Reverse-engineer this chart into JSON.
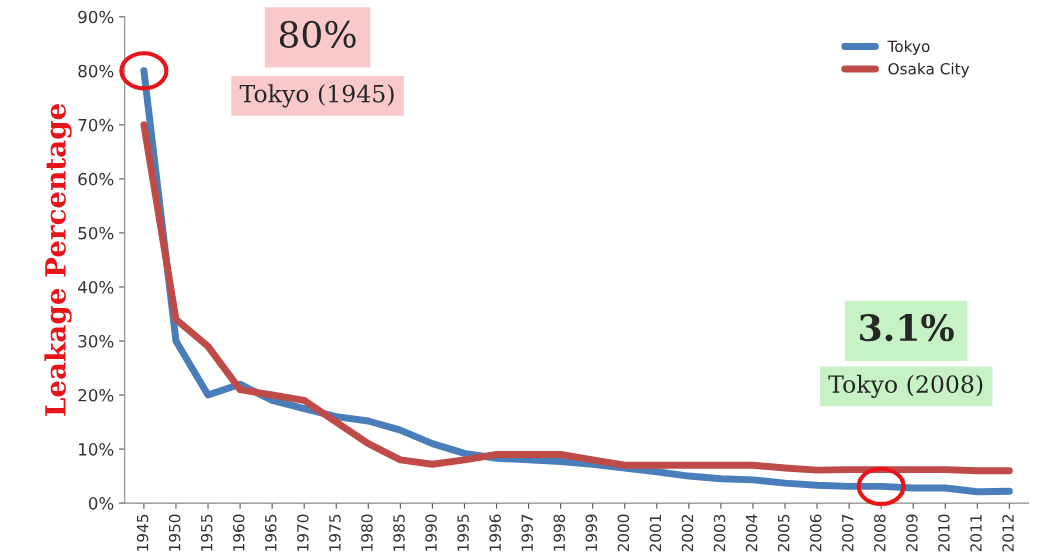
{
  "chart_data": {
    "type": "line",
    "ylabel": "Leakage Percentage",
    "categories": [
      "1945",
      "1950",
      "1955",
      "1960",
      "1965",
      "1970",
      "1975",
      "1980",
      "1985",
      "1990",
      "1995",
      "1996",
      "1997",
      "1998",
      "1999",
      "2000",
      "2001",
      "2002",
      "2003",
      "2004",
      "2005",
      "2006",
      "2007",
      "2008",
      "2009",
      "2010",
      "2011",
      "2012"
    ],
    "series": [
      {
        "name": "Tokyo",
        "color": "#4a7ebb",
        "values": [
          80,
          30,
          20,
          22,
          19,
          17.5,
          16,
          15.2,
          13.5,
          11,
          9.2,
          8.3,
          8,
          7.7,
          7.2,
          6.5,
          5.8,
          5,
          4.5,
          4.3,
          3.7,
          3.3,
          3.1,
          3.1,
          2.8,
          2.8,
          2.1,
          2.2
        ]
      },
      {
        "name": "Osaka City",
        "color": "#be4b48",
        "values": [
          70,
          34,
          29,
          21,
          20,
          19,
          15,
          11,
          8,
          7.2,
          8,
          9,
          9,
          9,
          8,
          7,
          7,
          7,
          7,
          7,
          6.5,
          6.1,
          6.2,
          6.2,
          6.2,
          6.2,
          6,
          6
        ]
      }
    ],
    "ylim": [
      0,
      90
    ],
    "yticks": [
      {
        "value": 0,
        "label": "0%"
      },
      {
        "value": 10,
        "label": "10%"
      },
      {
        "value": 20,
        "label": "20%"
      },
      {
        "value": 30,
        "label": "30%"
      },
      {
        "value": 40,
        "label": "40%"
      },
      {
        "value": 50,
        "label": "50%"
      },
      {
        "value": 60,
        "label": "60%"
      },
      {
        "value": 70,
        "label": "70%"
      },
      {
        "value": 80,
        "label": "80%"
      },
      {
        "value": 90,
        "label": "90%"
      }
    ],
    "annotations": [
      {
        "text": "80%\nTokyo (1945)",
        "x": "1945",
        "y": 80
      },
      {
        "text": "3.1%\nTokyo (2008)",
        "x": "2008",
        "y": 3.1
      }
    ],
    "grid": false,
    "legend": "top right",
    "marker": "none",
    "line_style": "solid"
  }
}
